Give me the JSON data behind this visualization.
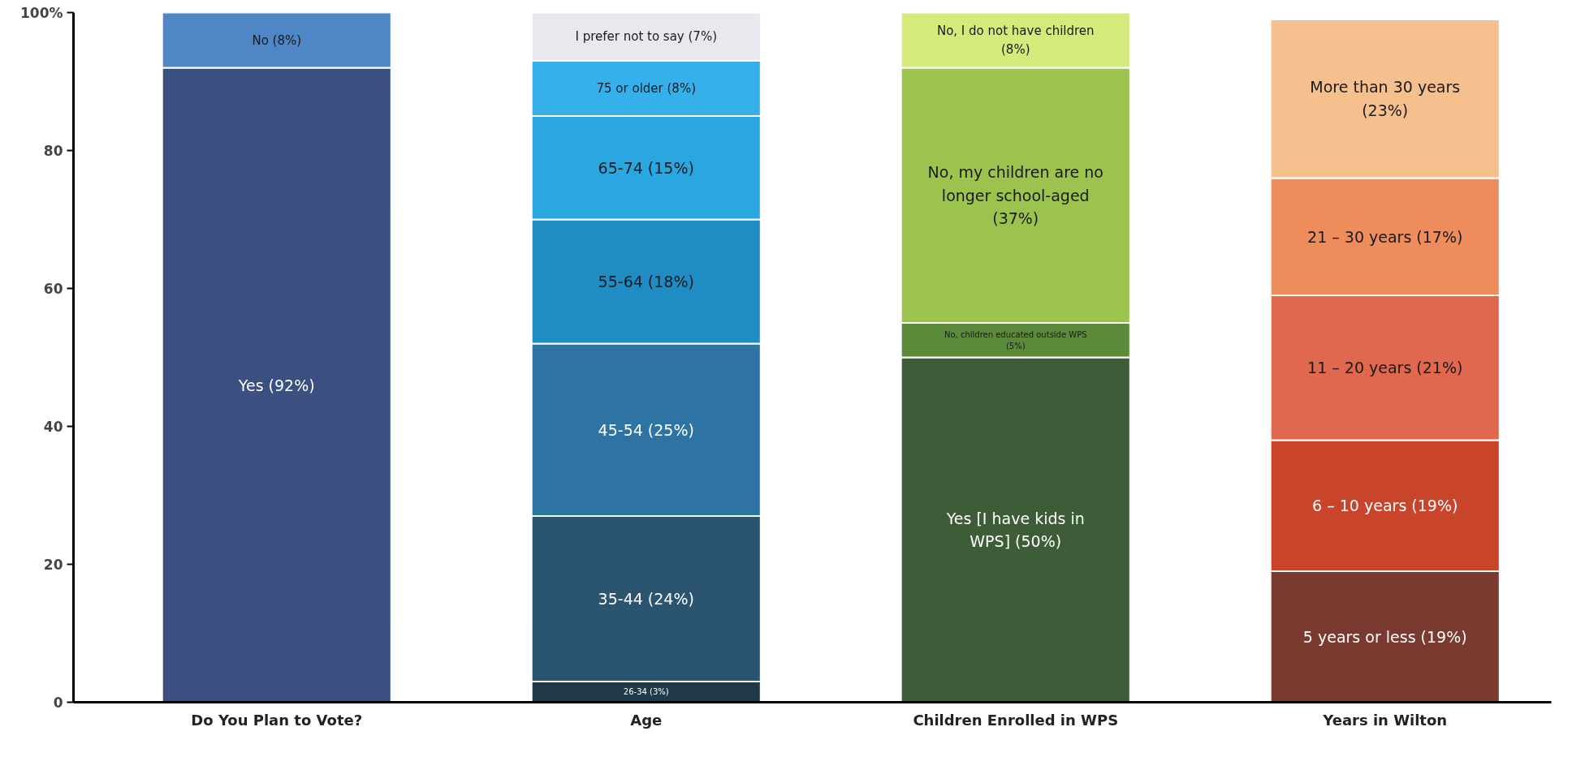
{
  "chart_data": {
    "type": "bar",
    "stacked": true,
    "categories": [
      "Do You Plan to Vote?",
      "Age",
      "Children Enrolled in WPS",
      "Years in Wilton"
    ],
    "ylim": [
      0,
      100
    ],
    "yticks": [
      0,
      20,
      40,
      60,
      80,
      {
        "value": 100,
        "label": "100%"
      }
    ],
    "series": [
      {
        "color": "#3b4f80",
        "values": [
          92,
          null,
          null,
          null
        ],
        "value_labels": [
          "Yes (92%)",
          null,
          null,
          null
        ]
      },
      {
        "color": "#4f86c6",
        "values": [
          8,
          null,
          null,
          null
        ],
        "value_labels": [
          "No (8%)",
          null,
          null,
          null
        ]
      },
      {
        "color": "#1f3a4a",
        "values": [
          null,
          3,
          null,
          null
        ],
        "value_labels": [
          null,
          "26-34 (3%)",
          null,
          null
        ]
      },
      {
        "color": "#2a5470",
        "values": [
          null,
          24,
          null,
          null
        ],
        "value_labels": [
          null,
          "35-44 (24%)",
          null,
          null
        ]
      },
      {
        "color": "#2d73a3",
        "values": [
          null,
          25,
          null,
          null
        ],
        "value_labels": [
          null,
          "45-54 (25%)",
          null,
          null
        ]
      },
      {
        "color": "#1f8cc4",
        "values": [
          null,
          18,
          null,
          null
        ],
        "value_labels": [
          null,
          "55-64 (18%)",
          null,
          null
        ]
      },
      {
        "color": "#2aa6e0",
        "values": [
          null,
          15,
          null,
          null
        ],
        "value_labels": [
          null,
          "65-74 (15%)",
          null,
          null
        ]
      },
      {
        "color": "#36b0ea",
        "values": [
          null,
          8,
          null,
          null
        ],
        "value_labels": [
          null,
          "75 or older (8%)",
          null,
          null
        ]
      },
      {
        "color": "#e8e8ee",
        "values": [
          null,
          7,
          null,
          null
        ],
        "value_labels": [
          null,
          "I prefer not to say (7%)",
          null,
          null
        ]
      },
      {
        "color": "#3e5c38",
        "values": [
          null,
          null,
          50,
          null
        ],
        "value_labels": [
          null,
          null,
          "Yes [I have kids in WPS] (50%)",
          null
        ]
      },
      {
        "color": "#5a8a3a",
        "values": [
          null,
          null,
          5,
          null
        ],
        "value_labels": [
          null,
          null,
          "No, children educated outside WPS (5%)",
          null
        ]
      },
      {
        "color": "#9dc34f",
        "values": [
          null,
          null,
          37,
          null
        ],
        "value_labels": [
          null,
          null,
          "No, my children are no longer school-aged (37%)",
          null
        ]
      },
      {
        "color": "#d4ea7a",
        "values": [
          null,
          null,
          8,
          null
        ],
        "value_labels": [
          null,
          null,
          "No, I do not have children (8%)",
          null
        ]
      },
      {
        "color": "#7a3a30",
        "values": [
          null,
          null,
          null,
          19
        ],
        "value_labels": [
          null,
          null,
          null,
          "5 years or less (19%)"
        ]
      },
      {
        "color": "#c8442a",
        "values": [
          null,
          null,
          null,
          19
        ],
        "value_labels": [
          null,
          null,
          null,
          "6 – 10 years (19%)"
        ]
      },
      {
        "color": "#e0684e",
        "values": [
          null,
          null,
          null,
          21
        ],
        "value_labels": [
          null,
          null,
          null,
          "11 – 20 years (21%)"
        ]
      },
      {
        "color": "#ef8c5c",
        "values": [
          null,
          null,
          null,
          17
        ],
        "value_labels": [
          null,
          null,
          null,
          "21 – 30 years (17%)"
        ]
      },
      {
        "color": "#f6c08e",
        "values": [
          null,
          null,
          null,
          23
        ],
        "value_labels": [
          null,
          null,
          null,
          "More than 30 years (23%)"
        ]
      }
    ]
  }
}
